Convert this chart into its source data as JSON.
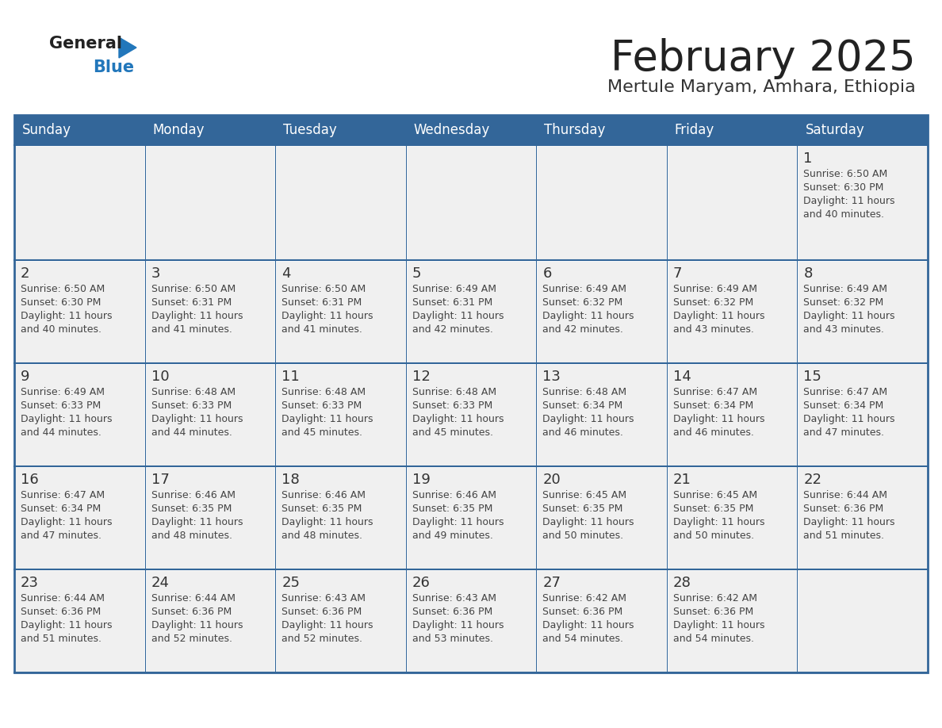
{
  "title": "February 2025",
  "subtitle": "Mertule Maryam, Amhara, Ethiopia",
  "days_of_week": [
    "Sunday",
    "Monday",
    "Tuesday",
    "Wednesday",
    "Thursday",
    "Friday",
    "Saturday"
  ],
  "header_bg": "#336699",
  "header_text": "#FFFFFF",
  "cell_bg": "#F0F0F0",
  "cell_border": "#FFFFFF",
  "grid_color": "#336699",
  "day_num_color": "#333333",
  "info_color": "#444444",
  "title_color": "#222222",
  "subtitle_color": "#333333",
  "logo_general_color": "#222222",
  "logo_blue_color": "#2277BB",
  "calendar_data": [
    [
      null,
      null,
      null,
      null,
      null,
      null,
      {
        "day": 1,
        "sunrise": "6:50 AM",
        "sunset": "6:30 PM",
        "daylight_a": "11 hours",
        "daylight_b": "and 40 minutes."
      }
    ],
    [
      {
        "day": 2,
        "sunrise": "6:50 AM",
        "sunset": "6:30 PM",
        "daylight_a": "11 hours",
        "daylight_b": "and 40 minutes."
      },
      {
        "day": 3,
        "sunrise": "6:50 AM",
        "sunset": "6:31 PM",
        "daylight_a": "11 hours",
        "daylight_b": "and 41 minutes."
      },
      {
        "day": 4,
        "sunrise": "6:50 AM",
        "sunset": "6:31 PM",
        "daylight_a": "11 hours",
        "daylight_b": "and 41 minutes."
      },
      {
        "day": 5,
        "sunrise": "6:49 AM",
        "sunset": "6:31 PM",
        "daylight_a": "11 hours",
        "daylight_b": "and 42 minutes."
      },
      {
        "day": 6,
        "sunrise": "6:49 AM",
        "sunset": "6:32 PM",
        "daylight_a": "11 hours",
        "daylight_b": "and 42 minutes."
      },
      {
        "day": 7,
        "sunrise": "6:49 AM",
        "sunset": "6:32 PM",
        "daylight_a": "11 hours",
        "daylight_b": "and 43 minutes."
      },
      {
        "day": 8,
        "sunrise": "6:49 AM",
        "sunset": "6:32 PM",
        "daylight_a": "11 hours",
        "daylight_b": "and 43 minutes."
      }
    ],
    [
      {
        "day": 9,
        "sunrise": "6:49 AM",
        "sunset": "6:33 PM",
        "daylight_a": "11 hours",
        "daylight_b": "and 44 minutes."
      },
      {
        "day": 10,
        "sunrise": "6:48 AM",
        "sunset": "6:33 PM",
        "daylight_a": "11 hours",
        "daylight_b": "and 44 minutes."
      },
      {
        "day": 11,
        "sunrise": "6:48 AM",
        "sunset": "6:33 PM",
        "daylight_a": "11 hours",
        "daylight_b": "and 45 minutes."
      },
      {
        "day": 12,
        "sunrise": "6:48 AM",
        "sunset": "6:33 PM",
        "daylight_a": "11 hours",
        "daylight_b": "and 45 minutes."
      },
      {
        "day": 13,
        "sunrise": "6:48 AM",
        "sunset": "6:34 PM",
        "daylight_a": "11 hours",
        "daylight_b": "and 46 minutes."
      },
      {
        "day": 14,
        "sunrise": "6:47 AM",
        "sunset": "6:34 PM",
        "daylight_a": "11 hours",
        "daylight_b": "and 46 minutes."
      },
      {
        "day": 15,
        "sunrise": "6:47 AM",
        "sunset": "6:34 PM",
        "daylight_a": "11 hours",
        "daylight_b": "and 47 minutes."
      }
    ],
    [
      {
        "day": 16,
        "sunrise": "6:47 AM",
        "sunset": "6:34 PM",
        "daylight_a": "11 hours",
        "daylight_b": "and 47 minutes."
      },
      {
        "day": 17,
        "sunrise": "6:46 AM",
        "sunset": "6:35 PM",
        "daylight_a": "11 hours",
        "daylight_b": "and 48 minutes."
      },
      {
        "day": 18,
        "sunrise": "6:46 AM",
        "sunset": "6:35 PM",
        "daylight_a": "11 hours",
        "daylight_b": "and 48 minutes."
      },
      {
        "day": 19,
        "sunrise": "6:46 AM",
        "sunset": "6:35 PM",
        "daylight_a": "11 hours",
        "daylight_b": "and 49 minutes."
      },
      {
        "day": 20,
        "sunrise": "6:45 AM",
        "sunset": "6:35 PM",
        "daylight_a": "11 hours",
        "daylight_b": "and 50 minutes."
      },
      {
        "day": 21,
        "sunrise": "6:45 AM",
        "sunset": "6:35 PM",
        "daylight_a": "11 hours",
        "daylight_b": "and 50 minutes."
      },
      {
        "day": 22,
        "sunrise": "6:44 AM",
        "sunset": "6:36 PM",
        "daylight_a": "11 hours",
        "daylight_b": "and 51 minutes."
      }
    ],
    [
      {
        "day": 23,
        "sunrise": "6:44 AM",
        "sunset": "6:36 PM",
        "daylight_a": "11 hours",
        "daylight_b": "and 51 minutes."
      },
      {
        "day": 24,
        "sunrise": "6:44 AM",
        "sunset": "6:36 PM",
        "daylight_a": "11 hours",
        "daylight_b": "and 52 minutes."
      },
      {
        "day": 25,
        "sunrise": "6:43 AM",
        "sunset": "6:36 PM",
        "daylight_a": "11 hours",
        "daylight_b": "and 52 minutes."
      },
      {
        "day": 26,
        "sunrise": "6:43 AM",
        "sunset": "6:36 PM",
        "daylight_a": "11 hours",
        "daylight_b": "and 53 minutes."
      },
      {
        "day": 27,
        "sunrise": "6:42 AM",
        "sunset": "6:36 PM",
        "daylight_a": "11 hours",
        "daylight_b": "and 54 minutes."
      },
      {
        "day": 28,
        "sunrise": "6:42 AM",
        "sunset": "6:36 PM",
        "daylight_a": "11 hours",
        "daylight_b": "and 54 minutes."
      },
      null
    ]
  ],
  "figsize": [
    11.88,
    9.18
  ],
  "dpi": 100
}
